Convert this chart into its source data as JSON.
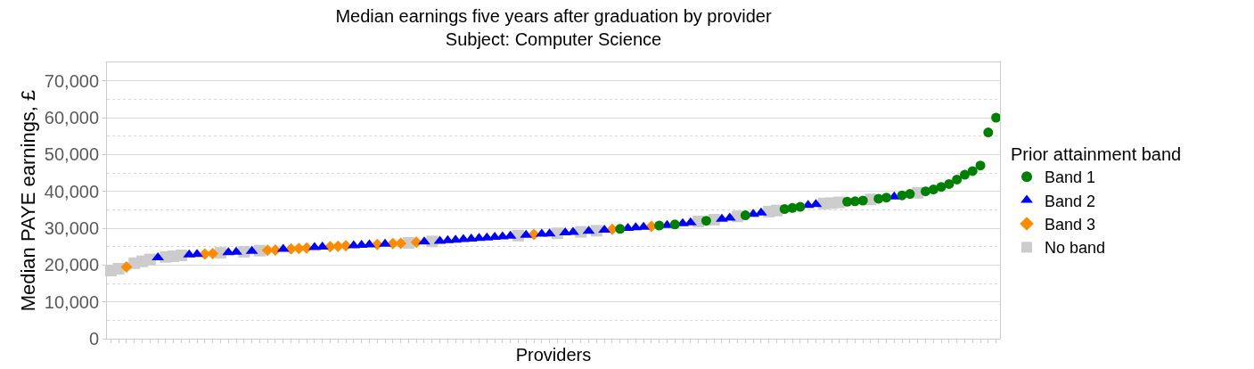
{
  "chart_data": {
    "type": "scatter",
    "title": "Median earnings five years after graduation by provider",
    "subtitle": "Subject: Computer Science",
    "xlabel": "Providers",
    "ylabel": "Median PAYE earnings, £",
    "legend_title": "Prior attainment band",
    "legend": "right",
    "grid": "y",
    "ylim": [
      0,
      75000
    ],
    "yticks": [
      {
        "value": 0,
        "label": "0"
      },
      {
        "value": 10000,
        "label": "10,000"
      },
      {
        "value": 20000,
        "label": "20,000"
      },
      {
        "value": 30000,
        "label": "30,000"
      },
      {
        "value": 40000,
        "label": "40,000"
      },
      {
        "value": 50000,
        "label": "50,000"
      },
      {
        "value": 60000,
        "label": "60,000"
      },
      {
        "value": 70000,
        "label": "70,000"
      }
    ],
    "categories": [
      null,
      null,
      null,
      null,
      null,
      null,
      null,
      null,
      null,
      null,
      null,
      null,
      null,
      null,
      null,
      null,
      null,
      null,
      null,
      null,
      null,
      null,
      null,
      null,
      null,
      null,
      null,
      null,
      null,
      null,
      null,
      null,
      null,
      null,
      null,
      null,
      null,
      null,
      null,
      null,
      null,
      null,
      null,
      null,
      null,
      null,
      null,
      null,
      null,
      null,
      null,
      null,
      null,
      null,
      null,
      null,
      null,
      null,
      null,
      null,
      null,
      null,
      null,
      null,
      null,
      null,
      null,
      null,
      null,
      null,
      null,
      null,
      null,
      null,
      null,
      null,
      null,
      null,
      null,
      null,
      null,
      null,
      null,
      null,
      null,
      null,
      null,
      null,
      null,
      null,
      null,
      null,
      null,
      null,
      null,
      null,
      null,
      null,
      null,
      null,
      null,
      null,
      null,
      null,
      null,
      null,
      null,
      null,
      null,
      null,
      null,
      null,
      null,
      null
    ],
    "series": [
      {
        "name": "Band 1",
        "color": "#008000",
        "marker": "circle",
        "values": [
          null,
          null,
          null,
          null,
          null,
          null,
          null,
          null,
          null,
          null,
          null,
          null,
          null,
          null,
          null,
          null,
          null,
          null,
          null,
          null,
          null,
          null,
          null,
          null,
          null,
          null,
          null,
          null,
          null,
          null,
          null,
          null,
          null,
          null,
          null,
          null,
          null,
          null,
          null,
          null,
          null,
          null,
          null,
          null,
          null,
          null,
          null,
          null,
          null,
          null,
          null,
          null,
          null,
          null,
          null,
          null,
          null,
          null,
          null,
          null,
          null,
          null,
          null,
          null,
          null,
          29800,
          null,
          null,
          null,
          null,
          30700,
          null,
          31000,
          null,
          null,
          null,
          32000,
          null,
          null,
          null,
          null,
          33500,
          null,
          null,
          null,
          null,
          35200,
          35500,
          35800,
          null,
          null,
          null,
          null,
          null,
          37200,
          37300,
          37500,
          null,
          38000,
          38300,
          null,
          38900,
          39300,
          null,
          40000,
          40500,
          41200,
          42000,
          43200,
          44500,
          45500,
          47000,
          56000,
          60000
        ]
      },
      {
        "name": "Band 2",
        "color": "#0000ff",
        "marker": "triangle",
        "values": [
          null,
          null,
          null,
          null,
          null,
          null,
          22000,
          null,
          null,
          null,
          22800,
          22900,
          null,
          null,
          null,
          23400,
          23500,
          null,
          23800,
          null,
          null,
          null,
          24300,
          null,
          null,
          null,
          24800,
          24900,
          null,
          null,
          null,
          25300,
          25400,
          25500,
          null,
          25700,
          null,
          null,
          null,
          null,
          26300,
          null,
          26500,
          26700,
          26800,
          27000,
          27100,
          27300,
          27400,
          27600,
          27700,
          27900,
          null,
          28100,
          null,
          28400,
          28500,
          null,
          28800,
          28900,
          null,
          29200,
          null,
          29500,
          null,
          null,
          30000,
          30200,
          30300,
          null,
          null,
          30800,
          null,
          31300,
          31500,
          null,
          null,
          null,
          32500,
          32800,
          null,
          null,
          33800,
          34200,
          null,
          null,
          null,
          null,
          null,
          36200,
          36500,
          null,
          null,
          null,
          null,
          null,
          null,
          null,
          null,
          null,
          38500,
          null,
          null,
          null,
          null,
          null,
          null,
          null,
          null,
          null,
          null,
          null,
          null,
          null
        ]
      },
      {
        "name": "Band 3",
        "color": "#ff8c00",
        "marker": "diamond",
        "values": [
          null,
          null,
          19500,
          null,
          null,
          null,
          null,
          null,
          null,
          null,
          null,
          null,
          23000,
          23100,
          null,
          null,
          null,
          null,
          null,
          null,
          24000,
          24100,
          null,
          24400,
          24500,
          24600,
          null,
          null,
          25000,
          25100,
          25200,
          null,
          null,
          null,
          25600,
          null,
          25800,
          25900,
          null,
          26200,
          null,
          null,
          null,
          null,
          null,
          null,
          null,
          null,
          null,
          null,
          null,
          null,
          null,
          null,
          28300,
          null,
          null,
          null,
          null,
          null,
          null,
          null,
          null,
          null,
          29700,
          null,
          null,
          null,
          null,
          30500,
          null,
          null,
          null,
          null,
          null,
          null,
          null,
          null,
          null,
          null,
          null,
          null,
          null,
          null,
          null,
          null,
          null,
          null,
          null,
          null,
          null,
          null,
          null,
          null,
          null,
          null,
          null,
          null,
          null,
          null,
          null,
          null,
          null,
          null,
          null,
          null,
          null,
          null,
          null,
          null,
          null,
          null,
          null,
          null
        ]
      },
      {
        "name": "No band",
        "color": "#cccccc",
        "marker": "square",
        "values": [
          18500,
          19000,
          null,
          20500,
          21000,
          21500,
          null,
          22200,
          22400,
          22600,
          null,
          null,
          null,
          null,
          23300,
          null,
          null,
          23600,
          null,
          23900,
          null,
          null,
          null,
          null,
          null,
          null,
          null,
          null,
          null,
          null,
          null,
          null,
          null,
          null,
          null,
          null,
          null,
          null,
          26000,
          null,
          null,
          26400,
          null,
          null,
          null,
          null,
          null,
          null,
          null,
          null,
          null,
          null,
          28000,
          null,
          null,
          null,
          null,
          28600,
          null,
          null,
          29000,
          null,
          29300,
          null,
          null,
          null,
          null,
          null,
          null,
          null,
          null,
          null,
          null,
          null,
          null,
          31800,
          null,
          32300,
          null,
          null,
          33200,
          null,
          null,
          null,
          34500,
          34800,
          null,
          null,
          null,
          null,
          null,
          36700,
          36800,
          37000,
          null,
          null,
          null,
          37800,
          null,
          null,
          null,
          null,
          null,
          39600,
          null,
          null,
          null,
          null,
          null,
          null,
          null,
          null,
          null,
          null
        ]
      }
    ]
  }
}
